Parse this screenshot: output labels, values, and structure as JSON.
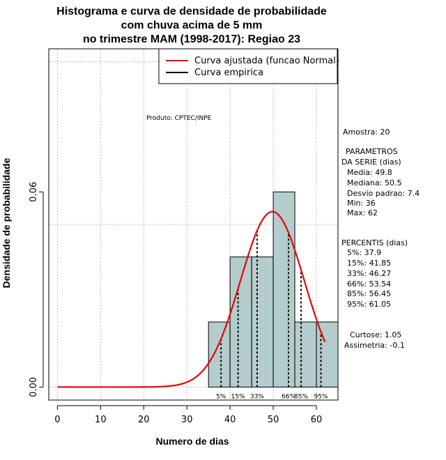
{
  "chart_data": {
    "type": "histogram",
    "title_lines": [
      "Histograma e curva de densidade de probabilidade",
      "com chuva acima de 5 mm",
      "no trimestre MAM (1998-2017): Regiao 23"
    ],
    "xlabel": "Numero de dias",
    "ylabel": "Densidade de probabilidade",
    "xlim": [
      -2,
      65
    ],
    "ylim": [
      -0.004,
      0.104
    ],
    "x_ticks": [
      0,
      10,
      20,
      30,
      40,
      50,
      60
    ],
    "y_ticks": [
      0.0,
      0.06
    ],
    "y_tick_labels": [
      "0.00",
      "0.06"
    ],
    "grid_x": [
      0,
      10,
      20,
      30,
      40,
      50,
      60
    ],
    "grid_y": [
      0.0,
      0.05,
      0.1
    ],
    "bins": [
      {
        "start": 35,
        "end": 40,
        "density": 0.02
      },
      {
        "start": 40,
        "end": 45,
        "density": 0.04
      },
      {
        "start": 45,
        "end": 50,
        "density": 0.04
      },
      {
        "start": 50,
        "end": 55,
        "density": 0.06
      },
      {
        "start": 55,
        "end": 60,
        "density": 0.02
      },
      {
        "start": 60,
        "end": 65,
        "density": 0.02
      }
    ],
    "bar_color": "#b4cccc",
    "curve_color": "#ee0000",
    "normal_fit": {
      "mean": 49.8,
      "sd": 7.4,
      "x_from": 0,
      "x_to": 62
    },
    "percentiles": [
      {
        "label": "5%",
        "value": 37.9
      },
      {
        "label": "15%",
        "value": 41.85
      },
      {
        "label": "33%",
        "value": 46.27
      },
      {
        "label": "66%",
        "value": 53.54
      },
      {
        "label": "85%",
        "value": 56.45
      },
      {
        "label": "95%",
        "value": 61.05
      }
    ],
    "legend": [
      {
        "label": "Curva ajustada (funcao Normal)",
        "color": "#ee0000"
      },
      {
        "label": "Curva empirica",
        "color": "#000000"
      }
    ],
    "annotation": "Produto: CPTEC/INPE",
    "side_text": [
      "Amostra: 20",
      "PARAMETROS",
      "DA SERIE (dias)",
      "Media: 49.8",
      "Mediana: 50.5",
      "Desvio padrao: 7.4",
      "Min: 36",
      "Max: 62",
      "PERCENTIS (dias)",
      "5%: 37.9",
      "15%: 41.85",
      "33%: 46.27",
      "66%: 53.54",
      "85%: 56.45",
      "95%: 61.05",
      "Curtose: 1.05",
      "Assimetria: -0.1"
    ]
  }
}
